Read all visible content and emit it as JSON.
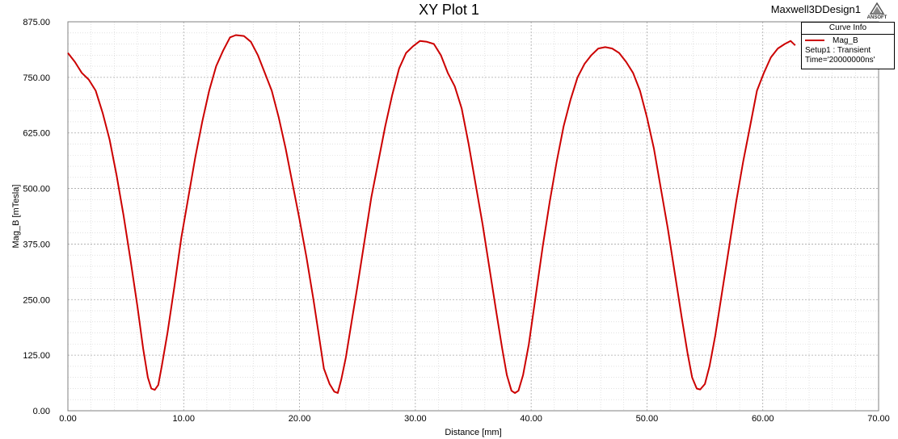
{
  "plot": {
    "title": "XY Plot 1",
    "design_name": "Maxwell3DDesign1",
    "logo_text": "ANSOFT"
  },
  "legend": {
    "title": "Curve Info",
    "series_name": "Mag_B",
    "setup_line": "Setup1 : Transient",
    "time_line": "Time='20000000ns'"
  },
  "chart_data": {
    "type": "line",
    "title": "XY Plot 1",
    "xlabel": "Distance [mm]",
    "ylabel": "Mag_B [mTesla]",
    "xlim": [
      0,
      70
    ],
    "ylim": [
      0,
      875
    ],
    "x_ticks": [
      "0.00",
      "10.00",
      "20.00",
      "30.00",
      "40.00",
      "50.00",
      "60.00",
      "70.00"
    ],
    "y_ticks": [
      "0.00",
      "125.00",
      "250.00",
      "375.00",
      "500.00",
      "625.00",
      "750.00",
      "875.00"
    ],
    "grid": true,
    "legend_position": "top-right",
    "series": [
      {
        "name": "Mag_B",
        "color": "#cc0000",
        "points": [
          [
            0.0,
            805
          ],
          [
            0.6,
            785
          ],
          [
            1.2,
            760
          ],
          [
            1.8,
            745
          ],
          [
            2.4,
            720
          ],
          [
            3.0,
            670
          ],
          [
            3.6,
            610
          ],
          [
            4.2,
            530
          ],
          [
            4.8,
            440
          ],
          [
            5.4,
            340
          ],
          [
            6.0,
            235
          ],
          [
            6.5,
            140
          ],
          [
            6.9,
            75
          ],
          [
            7.2,
            50
          ],
          [
            7.5,
            47
          ],
          [
            7.8,
            58
          ],
          [
            8.1,
            100
          ],
          [
            8.6,
            175
          ],
          [
            9.2,
            280
          ],
          [
            9.8,
            390
          ],
          [
            10.4,
            480
          ],
          [
            11.0,
            570
          ],
          [
            11.6,
            650
          ],
          [
            12.2,
            720
          ],
          [
            12.8,
            775
          ],
          [
            13.4,
            810
          ],
          [
            14.0,
            840
          ],
          [
            14.5,
            845
          ],
          [
            15.2,
            843
          ],
          [
            15.8,
            830
          ],
          [
            16.4,
            800
          ],
          [
            17.0,
            760
          ],
          [
            17.6,
            720
          ],
          [
            18.2,
            660
          ],
          [
            18.8,
            590
          ],
          [
            19.4,
            510
          ],
          [
            20.0,
            430
          ],
          [
            20.6,
            345
          ],
          [
            21.2,
            250
          ],
          [
            21.7,
            165
          ],
          [
            22.1,
            95
          ],
          [
            22.6,
            60
          ],
          [
            23.0,
            43
          ],
          [
            23.3,
            40
          ],
          [
            23.6,
            70
          ],
          [
            24.0,
            120
          ],
          [
            24.5,
            200
          ],
          [
            25.0,
            280
          ],
          [
            25.6,
            380
          ],
          [
            26.2,
            480
          ],
          [
            26.8,
            560
          ],
          [
            27.4,
            640
          ],
          [
            28.0,
            710
          ],
          [
            28.6,
            770
          ],
          [
            29.2,
            805
          ],
          [
            29.8,
            820
          ],
          [
            30.4,
            832
          ],
          [
            31.0,
            830
          ],
          [
            31.6,
            825
          ],
          [
            32.2,
            800
          ],
          [
            32.8,
            760
          ],
          [
            33.4,
            730
          ],
          [
            34.0,
            680
          ],
          [
            34.6,
            600
          ],
          [
            35.2,
            510
          ],
          [
            35.8,
            420
          ],
          [
            36.4,
            320
          ],
          [
            37.0,
            220
          ],
          [
            37.5,
            140
          ],
          [
            37.9,
            80
          ],
          [
            38.3,
            45
          ],
          [
            38.6,
            40
          ],
          [
            38.9,
            45
          ],
          [
            39.3,
            80
          ],
          [
            39.8,
            150
          ],
          [
            40.4,
            260
          ],
          [
            41.0,
            370
          ],
          [
            41.6,
            470
          ],
          [
            42.2,
            560
          ],
          [
            42.8,
            640
          ],
          [
            43.4,
            700
          ],
          [
            44.0,
            750
          ],
          [
            44.6,
            780
          ],
          [
            45.2,
            800
          ],
          [
            45.8,
            815
          ],
          [
            46.4,
            818
          ],
          [
            47.0,
            815
          ],
          [
            47.6,
            805
          ],
          [
            48.2,
            785
          ],
          [
            48.8,
            760
          ],
          [
            49.4,
            720
          ],
          [
            50.0,
            660
          ],
          [
            50.6,
            590
          ],
          [
            51.2,
            500
          ],
          [
            51.8,
            410
          ],
          [
            52.4,
            310
          ],
          [
            53.0,
            210
          ],
          [
            53.5,
            130
          ],
          [
            53.9,
            75
          ],
          [
            54.3,
            50
          ],
          [
            54.6,
            48
          ],
          [
            55.0,
            60
          ],
          [
            55.4,
            100
          ],
          [
            55.9,
            170
          ],
          [
            56.5,
            270
          ],
          [
            57.1,
            370
          ],
          [
            57.7,
            470
          ],
          [
            58.3,
            560
          ],
          [
            58.9,
            640
          ],
          [
            59.5,
            720
          ],
          [
            60.1,
            760
          ],
          [
            60.7,
            795
          ],
          [
            61.3,
            815
          ],
          [
            61.9,
            825
          ],
          [
            62.4,
            832
          ],
          [
            62.8,
            822
          ]
        ]
      }
    ]
  }
}
